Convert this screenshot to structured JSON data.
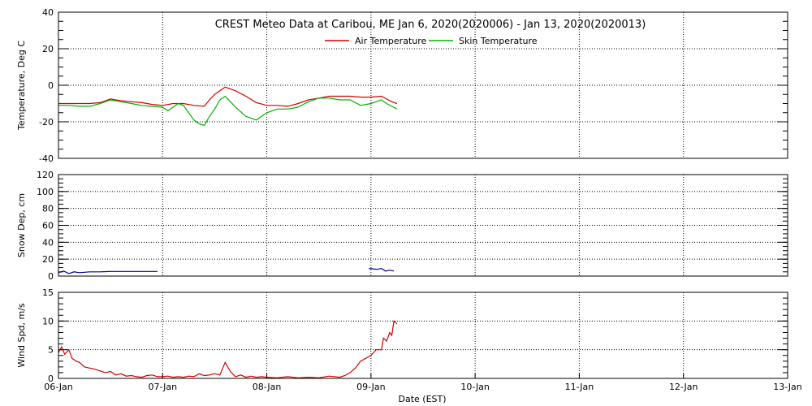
{
  "chart_data": [
    {
      "type": "line",
      "title": "CREST Meteo Data at Caribou, ME   Jan  6, 2020(2020006) - Jan 13, 2020(2020013)",
      "xlabel": "",
      "ylabel": "Temperature, Deg C",
      "xlim": [
        0,
        7
      ],
      "ylim": [
        -40,
        40
      ],
      "yticks": [
        -40,
        -20,
        0,
        20,
        40
      ],
      "grid": true,
      "legend": "top-center",
      "series": [
        {
          "name": "Air Temperature",
          "color": "#d40000",
          "x": [
            0,
            0.1,
            0.2,
            0.3,
            0.4,
            0.5,
            0.55,
            0.6,
            0.7,
            0.8,
            0.9,
            1.0,
            1.1,
            1.2,
            1.3,
            1.4,
            1.45,
            1.5,
            1.55,
            1.6,
            1.7,
            1.8,
            1.9,
            2.0,
            2.1,
            2.2,
            2.3,
            2.4,
            2.5,
            2.6,
            2.7,
            2.8,
            2.9,
            3.0,
            3.1,
            3.15,
            3.2,
            3.25
          ],
          "y": [
            -10,
            -10,
            -10,
            -10,
            -9.5,
            -7.5,
            -8,
            -8.5,
            -9,
            -9.5,
            -10.5,
            -11,
            -10,
            -10,
            -11,
            -11.5,
            -8,
            -5,
            -3,
            -1,
            -3,
            -6,
            -9.5,
            -11,
            -11,
            -11.5,
            -10,
            -8,
            -7,
            -6,
            -6,
            -6,
            -6.5,
            -6.5,
            -6,
            -7.5,
            -9,
            -10
          ]
        },
        {
          "name": "Skin Temperature",
          "color": "#00b400",
          "x": [
            0,
            0.1,
            0.2,
            0.3,
            0.4,
            0.5,
            0.6,
            0.7,
            0.8,
            0.9,
            1.0,
            1.05,
            1.1,
            1.15,
            1.2,
            1.3,
            1.35,
            1.4,
            1.45,
            1.5,
            1.55,
            1.6,
            1.7,
            1.8,
            1.9,
            2.0,
            2.1,
            2.2,
            2.3,
            2.4,
            2.5,
            2.6,
            2.7,
            2.8,
            2.9,
            3.0,
            3.1,
            3.15,
            3.2,
            3.25
          ],
          "y": [
            -11,
            -11,
            -11.5,
            -11.5,
            -10,
            -8,
            -9,
            -10,
            -11,
            -11.5,
            -12,
            -14,
            -12,
            -10,
            -11,
            -19,
            -21,
            -22,
            -17,
            -13,
            -8,
            -6,
            -12,
            -17,
            -19,
            -15,
            -13,
            -13,
            -12,
            -9,
            -7,
            -7,
            -8,
            -8,
            -11,
            -10,
            -8,
            -10,
            -11.5,
            -13
          ]
        }
      ]
    },
    {
      "type": "line",
      "title": "",
      "xlabel": "",
      "ylabel": "Snow Dep, cm",
      "xlim": [
        0,
        7
      ],
      "ylim": [
        0,
        120
      ],
      "yticks": [
        0,
        20,
        40,
        60,
        80,
        100,
        120
      ],
      "grid": true,
      "series": [
        {
          "name": "",
          "color": "#00008b",
          "x": [
            0,
            0.05,
            0.1,
            0.15,
            0.2,
            0.3,
            0.4,
            0.5,
            0.6,
            0.7,
            0.8,
            0.9,
            0.95,
            null,
            2.98,
            3.02,
            3.06,
            3.1,
            3.14,
            3.18,
            3.22
          ],
          "y": [
            4,
            6,
            3,
            5,
            4,
            5,
            5,
            5.5,
            5.5,
            5.5,
            5.5,
            5.5,
            5.5,
            null,
            9,
            8.5,
            8,
            9,
            6,
            7,
            6
          ]
        }
      ]
    },
    {
      "type": "line",
      "title": "",
      "xlabel": "Date (EST)",
      "ylabel": "Wind Spd, m/s",
      "xlim": [
        0,
        7
      ],
      "ylim": [
        0,
        15
      ],
      "yticks": [
        0,
        5,
        10,
        15
      ],
      "xticks": [
        "06-Jan",
        "07-Jan",
        "08-Jan",
        "09-Jan",
        "10-Jan",
        "11-Jan",
        "12-Jan",
        "13-Jan"
      ],
      "grid": true,
      "series": [
        {
          "name": "",
          "color": "#d40000",
          "x": [
            0,
            0.03,
            0.06,
            0.1,
            0.13,
            0.17,
            0.2,
            0.25,
            0.3,
            0.35,
            0.4,
            0.45,
            0.5,
            0.55,
            0.6,
            0.65,
            0.7,
            0.75,
            0.8,
            0.85,
            0.9,
            0.95,
            1.0,
            1.05,
            1.1,
            1.15,
            1.2,
            1.25,
            1.3,
            1.35,
            1.4,
            1.45,
            1.5,
            1.55,
            1.6,
            1.65,
            1.7,
            1.75,
            1.8,
            1.85,
            1.9,
            1.95,
            2.0,
            2.1,
            2.2,
            2.3,
            2.4,
            2.5,
            2.6,
            2.7,
            2.75,
            2.8,
            2.85,
            2.9,
            2.95,
            3.0,
            3.05,
            3.1,
            3.12,
            3.15,
            3.18,
            3.2,
            3.22,
            3.25
          ],
          "y": [
            4.5,
            5.5,
            4.2,
            5,
            3.5,
            3,
            2.8,
            2,
            1.8,
            1.6,
            1.3,
            1,
            1.2,
            0.6,
            0.8,
            0.4,
            0.5,
            0.3,
            0.2,
            0.5,
            0.6,
            0.3,
            0.3,
            0.4,
            0.2,
            0.3,
            0.2,
            0.4,
            0.3,
            0.8,
            0.5,
            0.6,
            0.8,
            0.6,
            2.8,
            1.2,
            0.3,
            0.6,
            0.2,
            0.4,
            0.2,
            0.3,
            0.2,
            0.1,
            0.3,
            0.1,
            0.2,
            0.1,
            0.4,
            0.2,
            0.5,
            1,
            1.8,
            3,
            3.5,
            4,
            5,
            5,
            7,
            6.5,
            8,
            7.5,
            10,
            9.5
          ]
        }
      ]
    }
  ]
}
